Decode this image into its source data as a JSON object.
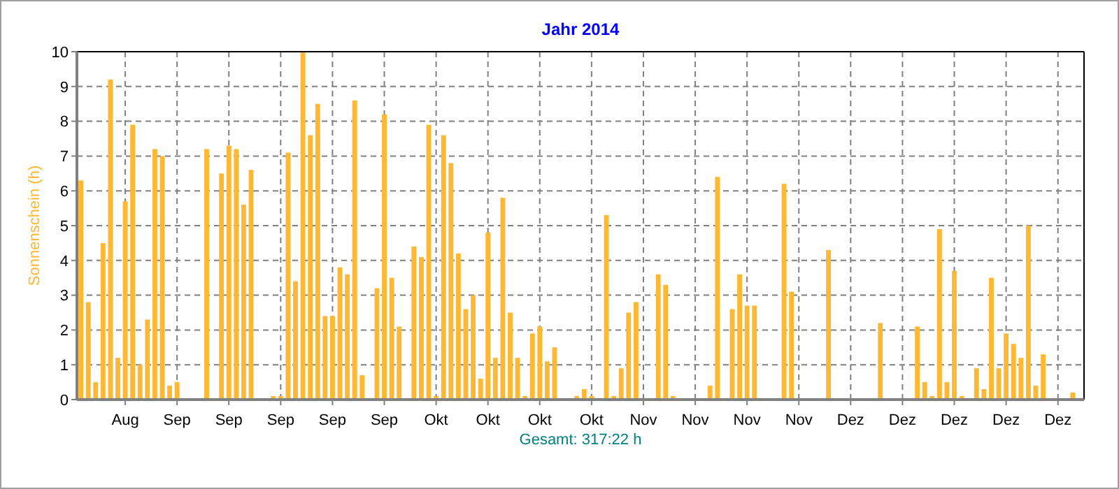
{
  "chart_data": {
    "type": "bar",
    "title": "Jahr 2014",
    "ylabel": "Sonnenschein (h)",
    "annotations": [
      "Gesamt: 317:22 h"
    ],
    "categories": [
      null,
      null,
      null,
      null,
      null,
      null,
      "Aug",
      null,
      null,
      null,
      null,
      null,
      null,
      "Sep",
      null,
      null,
      null,
      null,
      null,
      null,
      "Sep",
      null,
      null,
      null,
      null,
      null,
      null,
      "Sep",
      null,
      null,
      null,
      null,
      null,
      null,
      "Sep",
      null,
      null,
      null,
      null,
      null,
      null,
      "Sep",
      null,
      null,
      null,
      null,
      null,
      null,
      "Okt",
      null,
      null,
      null,
      null,
      null,
      null,
      "Okt",
      null,
      null,
      null,
      null,
      null,
      null,
      "Okt",
      null,
      null,
      null,
      null,
      null,
      null,
      "Okt",
      null,
      null,
      null,
      null,
      null,
      null,
      "Nov",
      null,
      null,
      null,
      null,
      null,
      null,
      "Nov",
      null,
      null,
      null,
      null,
      null,
      null,
      "Nov",
      null,
      null,
      null,
      null,
      null,
      null,
      "Nov",
      null,
      null,
      null,
      null,
      null,
      null,
      "Dez",
      null,
      null,
      null,
      null,
      null,
      null,
      "Dez",
      null,
      null,
      null,
      null,
      null,
      null,
      "Dez",
      null,
      null,
      null,
      null,
      null,
      null,
      "Dez",
      null,
      null,
      null,
      null,
      null,
      null,
      "Dez",
      null,
      null,
      null
    ],
    "values": [
      6.3,
      2.8,
      0.5,
      4.5,
      9.2,
      1.2,
      5.7,
      7.9,
      1.0,
      2.3,
      7.2,
      7.0,
      0.4,
      0.5,
      0,
      0,
      0,
      7.2,
      0,
      6.5,
      7.3,
      7.2,
      5.6,
      6.6,
      0,
      0,
      0.1,
      0.1,
      7.1,
      3.4,
      10,
      7.6,
      8.5,
      2.4,
      2.4,
      3.8,
      3.6,
      8.6,
      0.7,
      0,
      3.2,
      8.2,
      3.5,
      2.1,
      0,
      4.4,
      4.1,
      7.9,
      0.1,
      7.6,
      6.8,
      4.2,
      2.6,
      3.0,
      0.6,
      4.8,
      1.2,
      5.8,
      2.5,
      1.2,
      0.1,
      1.9,
      2.1,
      1.1,
      1.5,
      0,
      0,
      0.1,
      0.3,
      0.1,
      0,
      5.3,
      0.1,
      0.9,
      2.5,
      2.8,
      0,
      0,
      3.6,
      3.3,
      0.1,
      0,
      0,
      0,
      0,
      0.4,
      6.4,
      0,
      2.6,
      3.6,
      2.7,
      2.7,
      0,
      0,
      0,
      6.2,
      3.1,
      0,
      0,
      0,
      0,
      4.3,
      0,
      0,
      0,
      0,
      0,
      0,
      2.2,
      0,
      0,
      0,
      0,
      2.1,
      0.5,
      0.1,
      4.9,
      0.5,
      3.7,
      0.1,
      0,
      0.9,
      0.3,
      3.5,
      0.9,
      1.9,
      1.6,
      1.2,
      5.0,
      0.4,
      1.3,
      0,
      0,
      0,
      0.2,
      0
    ],
    "color": "#ffb833",
    "ylim": [
      0,
      10
    ],
    "yticks": [
      0,
      1,
      2,
      3,
      4,
      5,
      6,
      7,
      8,
      9,
      10
    ],
    "grid": true
  }
}
